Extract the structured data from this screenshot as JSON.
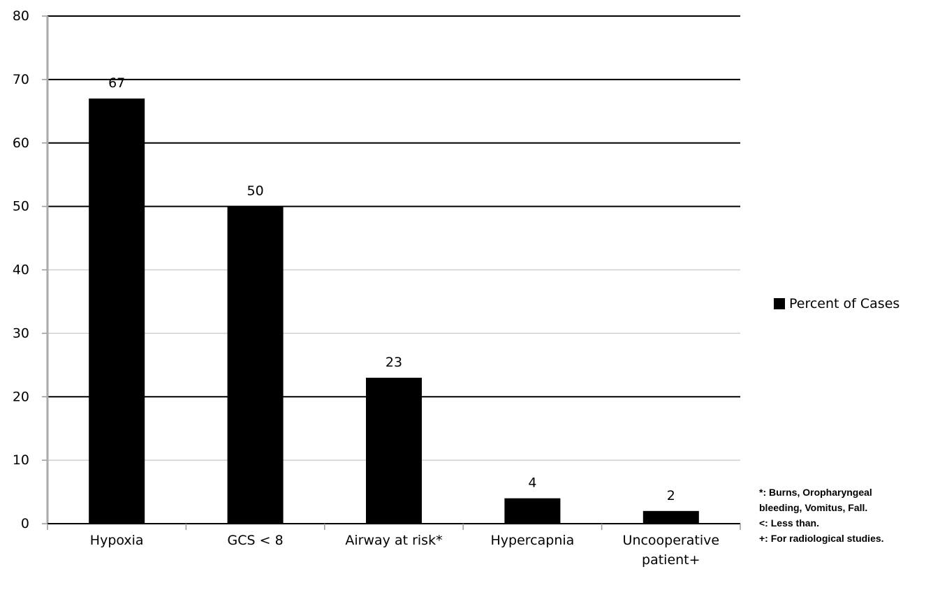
{
  "chart_data": {
    "type": "bar",
    "categories": [
      "Hypoxia",
      "GCS < 8",
      "Airway at risk*",
      "Hypercapnia",
      "Uncooperative patient+"
    ],
    "category_lines": [
      [
        "Hypoxia"
      ],
      [
        "GCS < 8"
      ],
      [
        "Airway at risk*"
      ],
      [
        "Hypercapnia"
      ],
      [
        "Uncooperative",
        "patient+"
      ]
    ],
    "series": [
      {
        "name": "Percent of Cases",
        "values": [
          67,
          50,
          23,
          4,
          2
        ]
      }
    ],
    "data_labels": [
      "67",
      "50",
      "23",
      "4",
      "2"
    ],
    "title": "",
    "xlabel": "",
    "ylabel": "",
    "ylim": [
      0,
      80
    ],
    "yticks": [
      0,
      10,
      20,
      30,
      40,
      50,
      60,
      70,
      80
    ],
    "grid": true,
    "legend_position": "right",
    "bar_color": "#000000"
  },
  "legend": {
    "label": "Percent of Cases"
  },
  "footnotes": [
    "*:  Burns,  Oropharyngeal",
    "bleeding, Vomitus, Fall.",
    "<: Less than.",
    "+: For radiological studies."
  ]
}
